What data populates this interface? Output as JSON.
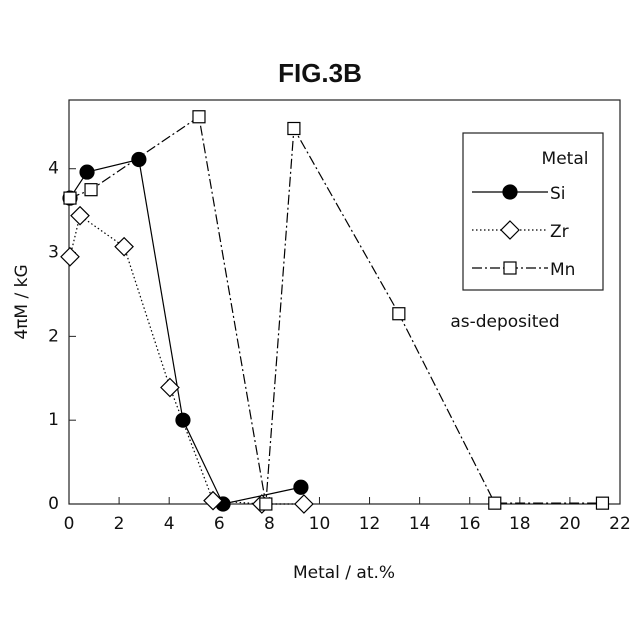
{
  "chart_data": {
    "type": "line",
    "title": "FIG.3B",
    "x_label": "Metal / at.%",
    "y_label": "4πM / kG",
    "legend_title": "Metal",
    "legend": "upper right",
    "annotation": "as-deposited",
    "xlim": [
      0,
      22
    ],
    "xticks": [
      0,
      2,
      4,
      6,
      8,
      10,
      12,
      14,
      16,
      18,
      20,
      22
    ],
    "ylim": [
      0,
      4.82
    ],
    "yticks": [
      0,
      1,
      2,
      3,
      4
    ],
    "series": [
      {
        "name": "Si",
        "color": "#000000",
        "marker": "circle",
        "line_style": "solid",
        "x": [
          0.04,
          0.72,
          2.79,
          4.55,
          6.15,
          9.26
        ],
        "values": [
          3.65,
          3.96,
          4.11,
          1.0,
          0,
          0.2
        ]
      },
      {
        "name": "Zr",
        "color": "#000000",
        "marker": "diamond",
        "line_style": "dotted",
        "x": [
          0.04,
          0.44,
          2.2,
          4.03,
          5.75,
          7.7,
          9.38
        ],
        "values": [
          2.95,
          3.44,
          3.07,
          1.39,
          0.04,
          0,
          0
        ]
      },
      {
        "name": "Mn",
        "color": "#000000",
        "marker": "square",
        "line_style": "dashdot",
        "x": [
          0.04,
          0.88,
          5.19,
          7.86,
          8.98,
          13.17,
          17.0,
          21.3
        ],
        "values": [
          3.65,
          3.75,
          4.62,
          0,
          4.48,
          2.27,
          0.01,
          0.01
        ]
      }
    ]
  }
}
